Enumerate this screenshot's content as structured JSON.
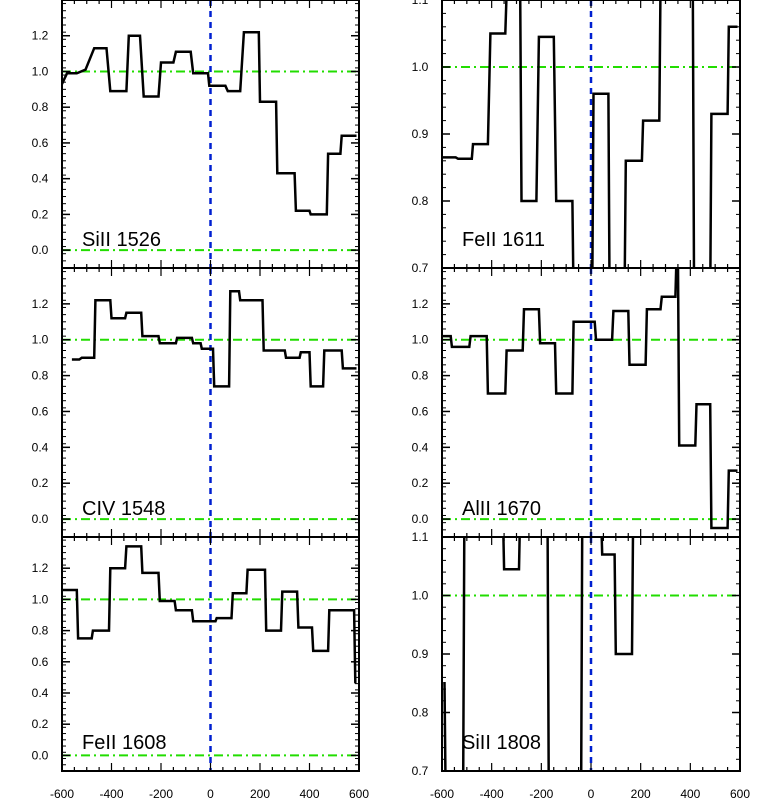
{
  "chart_data": [
    {
      "type": "line",
      "label": "SiII 1526",
      "xlim": [
        -600,
        600
      ],
      "ylim": [
        -0.1,
        1.4
      ],
      "yticks": [
        0.0,
        0.2,
        0.4,
        0.6,
        0.8,
        1.0,
        1.2
      ],
      "ytick_labels": [
        "0.0",
        "0.2",
        "0.4",
        "0.6",
        "0.8",
        "1.0",
        "1.2"
      ],
      "xticks": [],
      "xtick_labels": [],
      "continuum": [
        0.0,
        1.0
      ],
      "series": [
        {
          "values": [
            [
              -600,
              0.93
            ],
            [
              -580,
              0.99
            ],
            [
              -540,
              0.99
            ],
            [
              -505,
              1.01
            ],
            [
              -470,
              1.13
            ],
            [
              -420,
              1.13
            ],
            [
              -405,
              0.89
            ],
            [
              -340,
              0.89
            ],
            [
              -330,
              1.2
            ],
            [
              -285,
              1.2
            ],
            [
              -270,
              0.86
            ],
            [
              -210,
              0.86
            ],
            [
              -200,
              1.05
            ],
            [
              -150,
              1.05
            ],
            [
              -140,
              1.11
            ],
            [
              -80,
              1.11
            ],
            [
              -70,
              0.99
            ],
            [
              -10,
              0.99
            ],
            [
              -5,
              0.92
            ],
            [
              60,
              0.92
            ],
            [
              70,
              0.89
            ],
            [
              120,
              0.89
            ],
            [
              135,
              1.22
            ],
            [
              195,
              1.22
            ],
            [
              200,
              0.83
            ],
            [
              265,
              0.83
            ],
            [
              270,
              0.43
            ],
            [
              340,
              0.43
            ],
            [
              345,
              0.22
            ],
            [
              400,
              0.22
            ],
            [
              405,
              0.2
            ],
            [
              470,
              0.2
            ],
            [
              475,
              0.54
            ],
            [
              525,
              0.54
            ],
            [
              530,
              0.64
            ],
            [
              590,
              0.64
            ]
          ]
        }
      ]
    },
    {
      "type": "line",
      "label": "FeII 1611",
      "xlim": [
        -600,
        600
      ],
      "ylim": [
        0.7,
        1.1
      ],
      "yticks": [
        0.7,
        0.8,
        0.9,
        1.0,
        1.1
      ],
      "ytick_labels": [
        "0.7",
        "0.8",
        "0.9",
        "1.0",
        "1.1"
      ],
      "xticks": [],
      "xtick_labels": [],
      "continuum": [
        1.0
      ],
      "series": [
        {
          "values": [
            [
              -600,
              0.865
            ],
            [
              -545,
              0.865
            ],
            [
              -535,
              0.863
            ],
            [
              -480,
              0.863
            ],
            [
              -475,
              0.885
            ],
            [
              -415,
              0.885
            ],
            [
              -405,
              1.05
            ],
            [
              -345,
              1.05
            ],
            [
              -340,
              1.11
            ],
            [
              -285,
              1.11
            ],
            [
              -280,
              0.8
            ],
            [
              -220,
              0.8
            ],
            [
              -210,
              1.045
            ],
            [
              -150,
              1.045
            ],
            [
              -140,
              0.8
            ],
            [
              -75,
              0.8
            ],
            [
              -70,
              0.65
            ],
            [
              5,
              0.65
            ],
            [
              10,
              0.96
            ],
            [
              70,
              0.96
            ],
            [
              75,
              0.65
            ],
            [
              135,
              0.65
            ],
            [
              140,
              0.86
            ],
            [
              205,
              0.86
            ],
            [
              210,
              0.92
            ],
            [
              275,
              0.92
            ],
            [
              280,
              1.12
            ],
            [
              410,
              1.12
            ],
            [
              415,
              0.65
            ],
            [
              480,
              0.65
            ],
            [
              485,
              0.93
            ],
            [
              550,
              0.93
            ],
            [
              555,
              1.06
            ],
            [
              590,
              1.06
            ]
          ]
        }
      ]
    },
    {
      "type": "line",
      "label": "CIV 1548",
      "xlim": [
        -600,
        600
      ],
      "ylim": [
        -0.1,
        1.4
      ],
      "yticks": [
        0.0,
        0.2,
        0.4,
        0.6,
        0.8,
        1.0,
        1.2
      ],
      "ytick_labels": [
        "0.0",
        "0.2",
        "0.4",
        "0.6",
        "0.8",
        "1.0",
        "1.2"
      ],
      "xticks": [],
      "xtick_labels": [],
      "continuum": [
        0.0,
        1.0
      ],
      "series": [
        {
          "values": [
            [
              -560,
              0.89
            ],
            [
              -530,
              0.89
            ],
            [
              -520,
              0.9
            ],
            [
              -470,
              0.9
            ],
            [
              -465,
              1.22
            ],
            [
              -405,
              1.22
            ],
            [
              -400,
              1.12
            ],
            [
              -345,
              1.12
            ],
            [
              -340,
              1.15
            ],
            [
              -280,
              1.15
            ],
            [
              -275,
              1.02
            ],
            [
              -210,
              1.02
            ],
            [
              -205,
              0.98
            ],
            [
              -140,
              0.98
            ],
            [
              -135,
              1.01
            ],
            [
              -75,
              1.01
            ],
            [
              -70,
              0.98
            ],
            [
              -40,
              0.98
            ],
            [
              -35,
              0.95
            ],
            [
              10,
              0.95
            ],
            [
              15,
              0.74
            ],
            [
              75,
              0.74
            ],
            [
              80,
              1.27
            ],
            [
              115,
              1.27
            ],
            [
              120,
              1.22
            ],
            [
              210,
              1.22
            ],
            [
              215,
              0.94
            ],
            [
              300,
              0.94
            ],
            [
              305,
              0.9
            ],
            [
              360,
              0.9
            ],
            [
              365,
              0.93
            ],
            [
              400,
              0.93
            ],
            [
              405,
              0.74
            ],
            [
              455,
              0.74
            ],
            [
              460,
              0.94
            ],
            [
              530,
              0.94
            ],
            [
              535,
              0.84
            ],
            [
              590,
              0.84
            ]
          ]
        }
      ]
    },
    {
      "type": "line",
      "label": "AlII 1670",
      "xlim": [
        -600,
        600
      ],
      "ylim": [
        -0.1,
        1.4
      ],
      "yticks": [
        0.0,
        0.2,
        0.4,
        0.6,
        0.8,
        1.0,
        1.2
      ],
      "ytick_labels": [
        "0.0",
        "0.2",
        "0.4",
        "0.6",
        "0.8",
        "1.0",
        "1.2"
      ],
      "xticks": [],
      "xtick_labels": [],
      "continuum": [
        0.0,
        1.0
      ],
      "series": [
        {
          "values": [
            [
              -600,
              1.02
            ],
            [
              -565,
              1.02
            ],
            [
              -560,
              0.96
            ],
            [
              -490,
              0.96
            ],
            [
              -485,
              1.02
            ],
            [
              -420,
              1.02
            ],
            [
              -415,
              0.7
            ],
            [
              -345,
              0.7
            ],
            [
              -340,
              0.94
            ],
            [
              -275,
              0.94
            ],
            [
              -270,
              1.17
            ],
            [
              -210,
              1.17
            ],
            [
              -205,
              0.98
            ],
            [
              -145,
              0.98
            ],
            [
              -140,
              0.7
            ],
            [
              -75,
              0.7
            ],
            [
              -70,
              1.1
            ],
            [
              15,
              1.1
            ],
            [
              20,
              1.0
            ],
            [
              85,
              1.0
            ],
            [
              90,
              1.16
            ],
            [
              150,
              1.16
            ],
            [
              155,
              0.86
            ],
            [
              220,
              0.86
            ],
            [
              225,
              1.17
            ],
            [
              280,
              1.17
            ],
            [
              285,
              1.24
            ],
            [
              340,
              1.24
            ],
            [
              345,
              1.5
            ],
            [
              350,
              1.5
            ],
            [
              355,
              0.41
            ],
            [
              420,
              0.41
            ],
            [
              425,
              0.64
            ],
            [
              480,
              0.64
            ],
            [
              485,
              -0.05
            ],
            [
              550,
              -0.05
            ],
            [
              555,
              0.27
            ],
            [
              590,
              0.27
            ]
          ]
        }
      ]
    },
    {
      "type": "line",
      "label": "FeII 1608",
      "xlim": [
        -600,
        600
      ],
      "ylim": [
        -0.1,
        1.4
      ],
      "yticks": [
        0.0,
        0.2,
        0.4,
        0.6,
        0.8,
        1.0,
        1.2
      ],
      "ytick_labels": [
        "0.0",
        "0.2",
        "0.4",
        "0.6",
        "0.8",
        "1.0",
        "1.2"
      ],
      "xticks": [
        -600,
        -400,
        -200,
        0,
        200,
        400,
        600
      ],
      "xtick_labels": [
        "-600",
        "-400",
        "-200",
        "0",
        "200",
        "400",
        "600"
      ],
      "continuum": [
        0.0,
        1.0
      ],
      "series": [
        {
          "values": [
            [
              -600,
              1.06
            ],
            [
              -540,
              1.06
            ],
            [
              -535,
              0.75
            ],
            [
              -480,
              0.75
            ],
            [
              -475,
              0.8
            ],
            [
              -410,
              0.8
            ],
            [
              -405,
              1.2
            ],
            [
              -345,
              1.2
            ],
            [
              -340,
              1.34
            ],
            [
              -280,
              1.34
            ],
            [
              -275,
              1.17
            ],
            [
              -210,
              1.17
            ],
            [
              -205,
              0.99
            ],
            [
              -145,
              0.99
            ],
            [
              -140,
              0.93
            ],
            [
              -75,
              0.93
            ],
            [
              -70,
              0.86
            ],
            [
              20,
              0.86
            ],
            [
              25,
              0.88
            ],
            [
              85,
              0.88
            ],
            [
              90,
              1.04
            ],
            [
              145,
              1.04
            ],
            [
              150,
              1.19
            ],
            [
              220,
              1.19
            ],
            [
              225,
              0.8
            ],
            [
              285,
              0.8
            ],
            [
              290,
              1.05
            ],
            [
              350,
              1.05
            ],
            [
              355,
              0.82
            ],
            [
              410,
              0.82
            ],
            [
              415,
              0.67
            ],
            [
              475,
              0.67
            ],
            [
              480,
              0.93
            ],
            [
              580,
              0.93
            ],
            [
              585,
              0.47
            ],
            [
              590,
              0.47
            ]
          ]
        }
      ]
    },
    {
      "type": "line",
      "label": "SiII 1808",
      "xlim": [
        -600,
        600
      ],
      "ylim": [
        0.7,
        1.1
      ],
      "yticks": [
        0.7,
        0.8,
        0.9,
        1.0,
        1.1
      ],
      "ytick_labels": [
        "0.7",
        "0.8",
        "0.9",
        "1.0",
        "1.1"
      ],
      "xticks": [
        -600,
        -400,
        -200,
        0,
        200,
        400,
        600
      ],
      "xtick_labels": [
        "-600",
        "-400",
        "-200",
        "0",
        "200",
        "400",
        "600"
      ],
      "continuum": [
        1.0
      ],
      "series": [
        {
          "values": [
            [
              -595,
              0.85
            ],
            [
              -590,
              0.85
            ],
            [
              -585,
              0.65
            ],
            [
              -515,
              0.65
            ],
            [
              -510,
              1.15
            ],
            [
              -355,
              1.15
            ],
            [
              -350,
              1.045
            ],
            [
              -290,
              1.045
            ],
            [
              -285,
              1.15
            ],
            [
              -175,
              1.15
            ],
            [
              -170,
              0.65
            ],
            [
              -40,
              0.65
            ],
            [
              -35,
              1.15
            ],
            [
              40,
              1.15
            ],
            [
              45,
              1.07
            ],
            [
              95,
              1.07
            ],
            [
              100,
              0.9
            ],
            [
              165,
              0.9
            ],
            [
              170,
              1.15
            ],
            [
              590,
              1.15
            ]
          ]
        }
      ]
    }
  ]
}
